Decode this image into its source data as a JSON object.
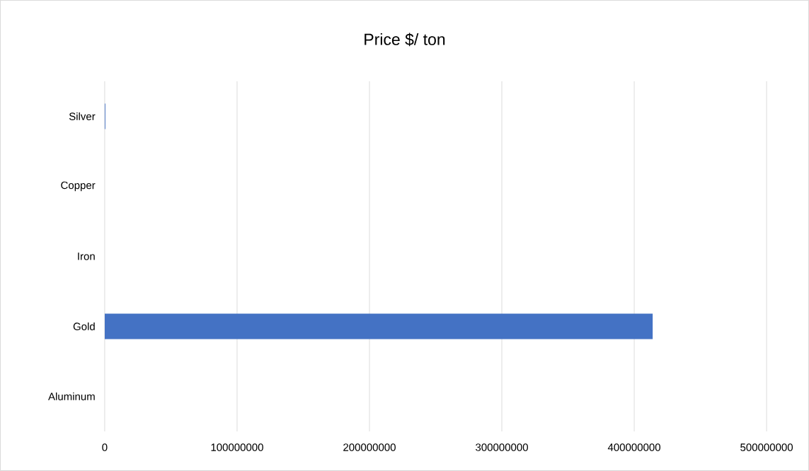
{
  "chart_data": {
    "type": "bar",
    "orientation": "horizontal",
    "title": "Price $/ ton",
    "categories": [
      "Silver",
      "Copper",
      "Iron",
      "Gold",
      "Aluminum"
    ],
    "values": [
      500000,
      0,
      0,
      414000000,
      0
    ],
    "color": "#4472c4",
    "xlim": [
      0,
      500000000
    ],
    "xticks": [
      0,
      100000000,
      200000000,
      300000000,
      400000000,
      500000000
    ],
    "grid": "x"
  }
}
